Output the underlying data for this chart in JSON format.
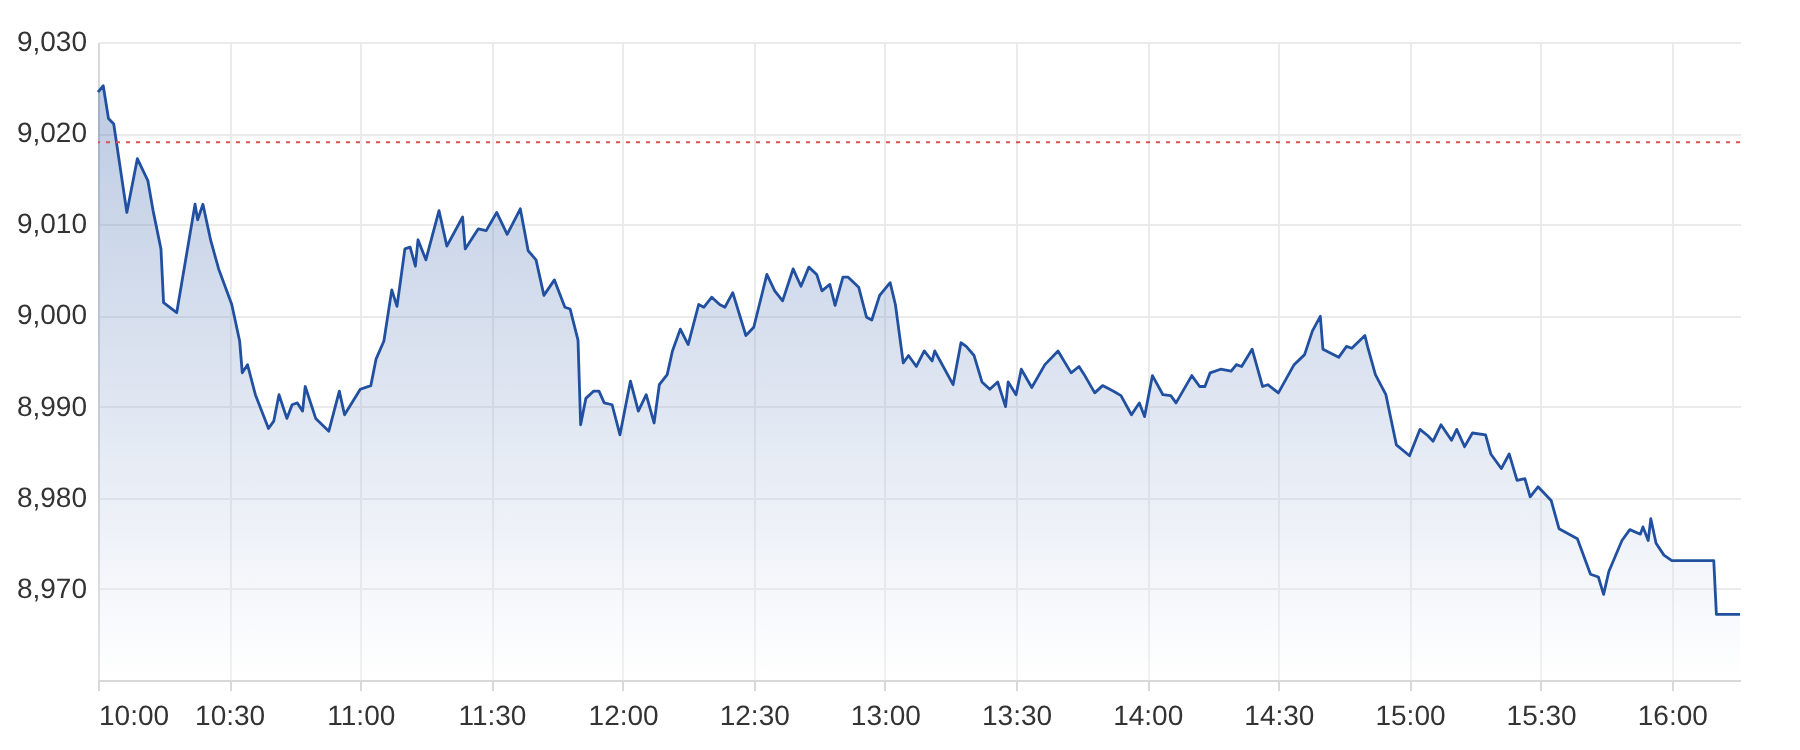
{
  "chart_data": {
    "type": "area",
    "xlim": [
      10,
      16.26
    ],
    "ylim": [
      8960,
      9030
    ],
    "xticks": [
      {
        "value": 10,
        "label": "10:00"
      },
      {
        "value": 10.5,
        "label": "10:30"
      },
      {
        "value": 11,
        "label": "11:00"
      },
      {
        "value": 11.5,
        "label": "11:30"
      },
      {
        "value": 12,
        "label": "12:00"
      },
      {
        "value": 12.5,
        "label": "12:30"
      },
      {
        "value": 13,
        "label": "13:00"
      },
      {
        "value": 13.5,
        "label": "13:30"
      },
      {
        "value": 14,
        "label": "14:00"
      },
      {
        "value": 14.5,
        "label": "14:30"
      },
      {
        "value": 15,
        "label": "15:00"
      },
      {
        "value": 15.5,
        "label": "15:30"
      },
      {
        "value": 16,
        "label": "16:00"
      }
    ],
    "yticks": [
      {
        "value": 8970,
        "label": "8,970"
      },
      {
        "value": 8980,
        "label": "8,980"
      },
      {
        "value": 8990,
        "label": "8,990"
      },
      {
        "value": 9000,
        "label": "9,000"
      },
      {
        "value": 9010,
        "label": "9,010"
      },
      {
        "value": 9020,
        "label": "9,020"
      },
      {
        "value": 9030,
        "label": "9,030"
      }
    ],
    "grid": true,
    "ref_lines": [
      {
        "axis": "y",
        "value": 9019,
        "color": "#d9534f",
        "line_style": "dotted"
      }
    ],
    "series": [
      {
        "color": "#2150a0",
        "x": [
          10.0,
          10.02,
          10.04,
          10.06,
          10.11,
          10.15,
          10.19,
          10.21,
          10.24,
          10.25,
          10.3,
          10.37,
          10.38,
          10.4,
          10.43,
          10.46,
          10.51,
          10.54,
          10.55,
          10.57,
          10.6,
          10.65,
          10.67,
          10.69,
          10.72,
          10.74,
          10.76,
          10.78,
          10.79,
          10.83,
          10.88,
          10.92,
          10.94,
          11.0,
          11.04,
          11.06,
          11.09,
          11.12,
          11.14,
          11.17,
          11.19,
          11.21,
          11.22,
          11.25,
          11.3,
          11.33,
          11.39,
          11.4,
          11.45,
          11.48,
          11.52,
          11.56,
          11.61,
          11.64,
          11.67,
          11.7,
          11.74,
          11.78,
          11.8,
          11.83,
          11.84,
          11.86,
          11.89,
          11.91,
          11.93,
          11.96,
          11.99,
          12.03,
          12.06,
          12.09,
          12.12,
          12.14,
          12.17,
          12.19,
          12.22,
          12.25,
          12.29,
          12.31,
          12.34,
          12.37,
          12.39,
          12.42,
          12.47,
          12.5,
          12.55,
          12.58,
          12.61,
          12.65,
          12.68,
          12.71,
          12.74,
          12.76,
          12.79,
          12.81,
          12.84,
          12.86,
          12.9,
          12.93,
          12.95,
          12.98,
          13.02,
          13.04,
          13.07,
          13.09,
          13.12,
          13.15,
          13.18,
          13.19,
          13.26,
          13.29,
          13.31,
          13.34,
          13.37,
          13.4,
          13.43,
          13.46,
          13.47,
          13.5,
          13.52,
          13.56,
          13.61,
          13.66,
          13.71,
          13.74,
          13.76,
          13.8,
          13.83,
          13.87,
          13.9,
          13.94,
          13.97,
          13.99,
          14.02,
          14.06,
          14.09,
          14.11,
          14.17,
          14.2,
          14.22,
          14.24,
          14.28,
          14.32,
          14.34,
          14.36,
          14.4,
          14.44,
          14.46,
          14.5,
          14.56,
          14.6,
          14.63,
          14.66,
          14.67,
          14.73,
          14.76,
          14.78,
          14.83,
          14.84,
          14.87,
          14.91,
          14.95,
          15.0,
          15.04,
          15.07,
          15.09,
          15.12,
          15.16,
          15.18,
          15.21,
          15.24,
          15.29,
          15.31,
          15.35,
          15.38,
          15.41,
          15.44,
          15.46,
          15.49,
          15.54,
          15.57,
          15.64,
          15.69,
          15.72,
          15.74,
          15.76,
          15.81,
          15.84,
          15.88,
          15.89,
          15.91,
          15.92,
          15.94,
          15.97,
          16.0,
          16.16,
          16.17,
          16.26
        ],
        "values": [
          9024.5,
          9025.2,
          9021.6,
          9021,
          9011.3,
          9017.2,
          9014.8,
          9011.5,
          9007.3,
          9001.4,
          9000.3,
          9012.2,
          9010.5,
          9012.2,
          9008.2,
          9005.1,
          9001.2,
          8997.2,
          8993.7,
          8994.6,
          8991.3,
          8987.6,
          8988.4,
          8991.3,
          8988.7,
          8990.2,
          8990.4,
          8989.5,
          8992.2,
          8988.7,
          8987.3,
          8991.7,
          8989.1,
          8991.9,
          8992.3,
          8995.2,
          8997.2,
          9002.8,
          9001,
          9007.3,
          9007.5,
          9005.4,
          9008.3,
          9006.1,
          9011.5,
          9007.6,
          9010.8,
          9007.3,
          9009.5,
          9009.3,
          9011.3,
          9008.9,
          9011.7,
          9007.1,
          9006.1,
          9002.2,
          9003.9,
          9000.9,
          9000.7,
          8997.3,
          8988,
          8990.9,
          8991.7,
          8991.7,
          8990.4,
          8990.2,
          8986.9,
          8992.8,
          8989.5,
          8991.3,
          8988.2,
          8992.4,
          8993.5,
          8996.1,
          8998.5,
          8996.8,
          9001.2,
          9000.9,
          9002,
          9001.2,
          9000.9,
          9002.5,
          8997.8,
          8998.7,
          9004.5,
          9002.7,
          9001.6,
          9005.1,
          9003.2,
          9005.3,
          9004.5,
          9002.7,
          9003.4,
          9001.1,
          9004.2,
          9004.2,
          9003.1,
          8999.8,
          8999.5,
          9002.2,
          9003.6,
          9001.2,
          8994.8,
          8995.6,
          8994.4,
          8996.1,
          8995,
          8996.1,
          8992.4,
          8997,
          8996.6,
          8995.6,
          8992.7,
          8991.9,
          8992.7,
          8990,
          8992.7,
          8991.3,
          8994.1,
          8992.1,
          8994.6,
          8996.1,
          8993.7,
          8994.4,
          8993.5,
          8991.5,
          8992.3,
          8991.7,
          8991.2,
          8989.1,
          8990.4,
          8988.9,
          8993.4,
          8991.3,
          8991.2,
          8990.4,
          8993.4,
          8992.2,
          8992.2,
          8993.7,
          8994.1,
          8993.9,
          8994.6,
          8994.4,
          8996.3,
          8992.2,
          8992.4,
          8991.5,
          8994.6,
          8995.7,
          8998.3,
          8999.9,
          8996.3,
          8995.4,
          8996.6,
          8996.4,
          8997.8,
          8996.6,
          8993.5,
          8991.3,
          8985.8,
          8984.6,
          8987.5,
          8986.8,
          8986.2,
          8988,
          8986.3,
          8987.5,
          8985.6,
          8987.1,
          8986.9,
          8984.8,
          8983.2,
          8984.8,
          8981.9,
          8982.1,
          8980.1,
          8981.2,
          8979.7,
          8976.6,
          8975.5,
          8971.6,
          8971.3,
          8969.4,
          8971.9,
          8975.3,
          8976.5,
          8976,
          8976.8,
          8975.3,
          8977.7,
          8975,
          8973.7,
          8973.1,
          8973.1,
          8967.2,
          8967.2
        ]
      }
    ]
  }
}
